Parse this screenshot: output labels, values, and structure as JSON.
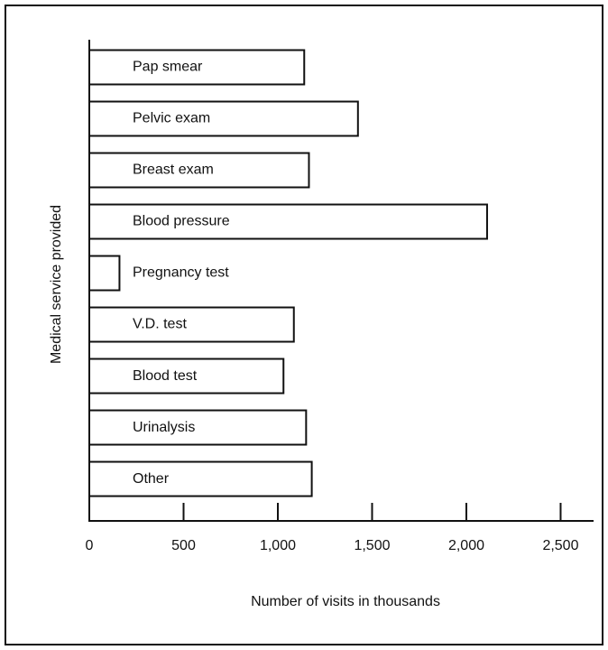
{
  "chart_data": {
    "type": "bar",
    "orientation": "horizontal",
    "x_label": "Number of visits in thousands",
    "y_label": "Medical service provided",
    "categories": [
      "Pap smear",
      "Pelvic exam",
      "Breast exam",
      "Blood pressure",
      "Pregnancy test",
      "V.D. test",
      "Blood test",
      "Urinalysis",
      "Other"
    ],
    "values": [
      1140,
      1425,
      1165,
      2110,
      160,
      1085,
      1030,
      1150,
      1180
    ],
    "color": "#ffffff",
    "xlim": [
      0,
      2670
    ],
    "xticks": [
      0,
      500,
      {
        "value": 1000,
        "label": "1,000"
      },
      {
        "value": 1500,
        "label": "1,500"
      },
      {
        "value": 2000,
        "label": "2,000"
      },
      {
        "value": 2500,
        "label": "2,500"
      }
    ],
    "grid": false
  }
}
